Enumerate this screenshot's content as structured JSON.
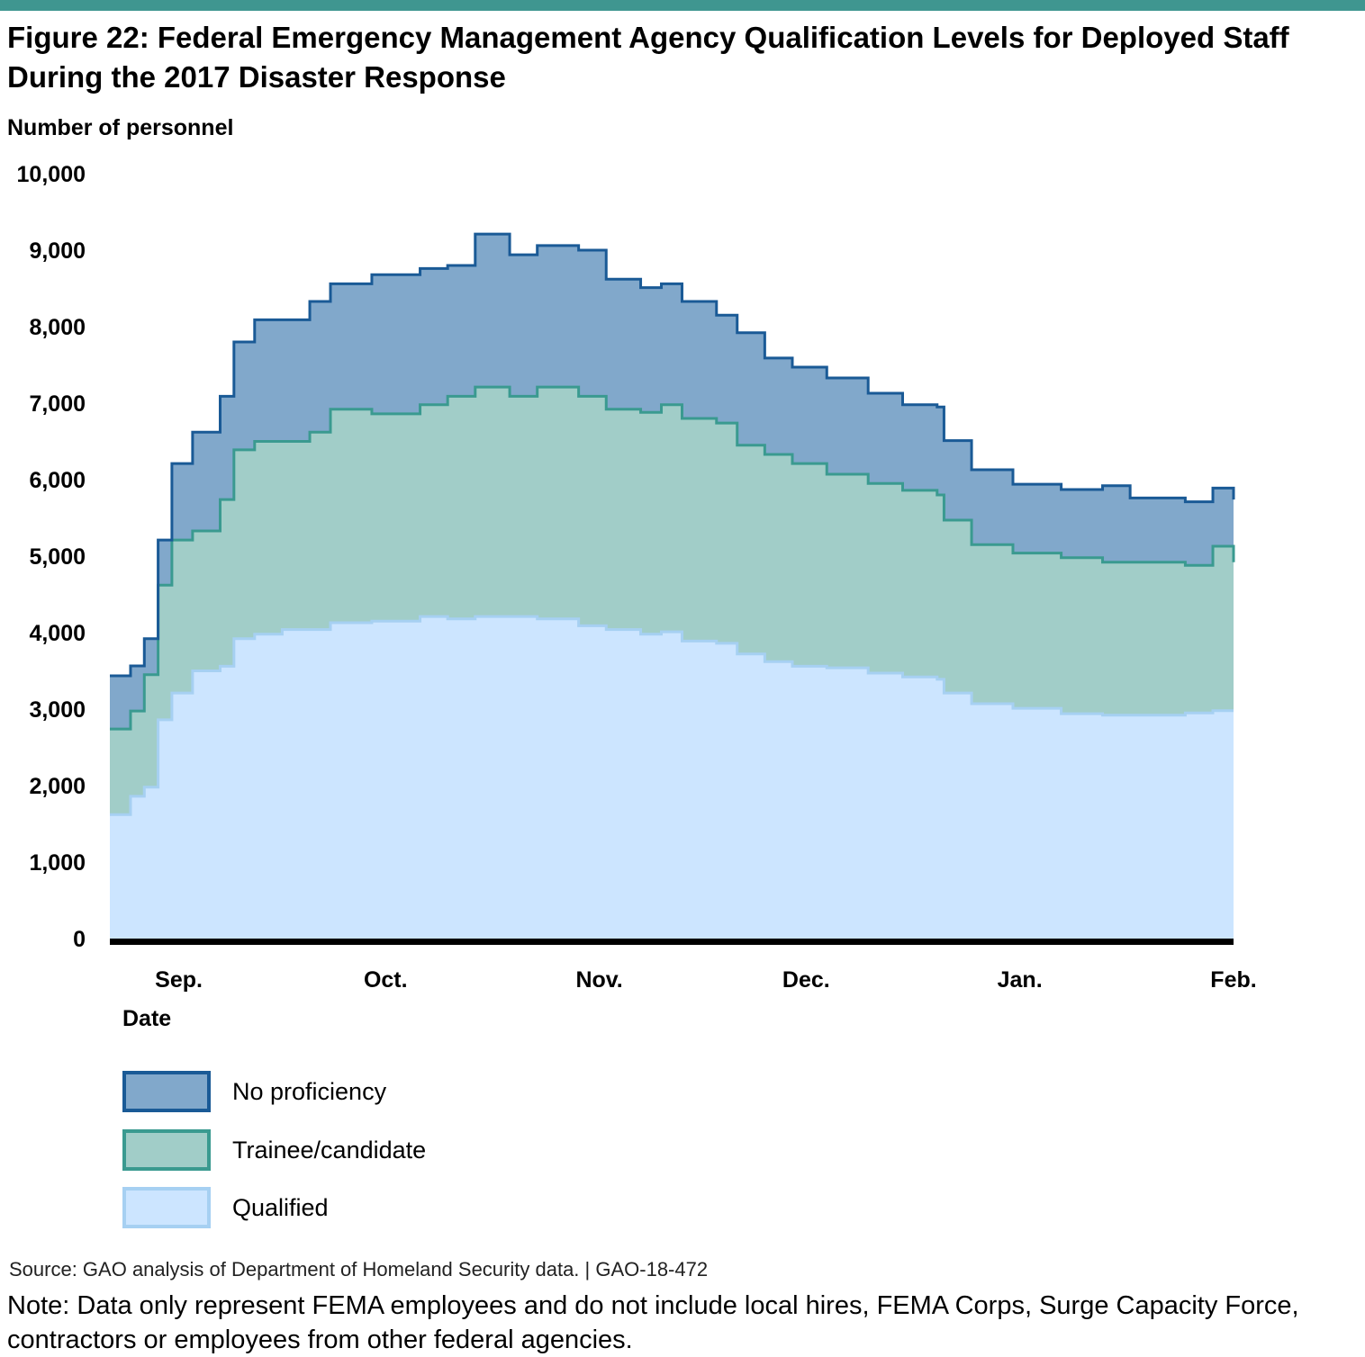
{
  "title": "Figure 22: Federal Emergency Management Agency Qualification Levels for Deployed Staff During the 2017 Disaster Response",
  "source": "Source: GAO analysis of Department of Homeland Security data.  |  GAO-18-472",
  "note": "Note: Data only represent FEMA employees and do not include local hires, FEMA Corps, Surge Capacity Force, contractors or employees from other federal agencies.",
  "chart_data": {
    "type": "area",
    "stacked": true,
    "step": true,
    "title": "Federal Emergency Management Agency Qualification Levels for Deployed Staff During the 2017 Disaster Response",
    "xlabel": "Date",
    "ylabel": "Number of personnel",
    "ylim": [
      0,
      10000
    ],
    "yticks": [
      "0",
      "1,000",
      "2,000",
      "3,000",
      "4,000",
      "5,000",
      "6,000",
      "7,000",
      "8,000",
      "9,000",
      "10,000"
    ],
    "ytick_values": [
      0,
      1000,
      2000,
      3000,
      4000,
      5000,
      6000,
      7000,
      8000,
      9000,
      10000
    ],
    "xlim": [
      "2017-08-22",
      "2018-02-01"
    ],
    "xticks": [
      {
        "label": "Sep.",
        "date": "2017-09-01"
      },
      {
        "label": "Oct.",
        "date": "2017-10-01"
      },
      {
        "label": "Nov.",
        "date": "2017-11-01"
      },
      {
        "label": "Dec.",
        "date": "2017-12-01"
      },
      {
        "label": "Jan.",
        "date": "2018-01-01"
      },
      {
        "label": "Feb.",
        "date": "2018-02-01"
      }
    ],
    "grid": false,
    "legend_position": "bottom-left",
    "x": [
      "2017-08-22",
      "2017-08-25",
      "2017-08-27",
      "2017-08-29",
      "2017-08-31",
      "2017-09-03",
      "2017-09-07",
      "2017-09-09",
      "2017-09-12",
      "2017-09-16",
      "2017-09-20",
      "2017-09-23",
      "2017-09-29",
      "2017-10-06",
      "2017-10-10",
      "2017-10-14",
      "2017-10-19",
      "2017-10-23",
      "2017-10-29",
      "2017-11-02",
      "2017-11-07",
      "2017-11-10",
      "2017-11-13",
      "2017-11-18",
      "2017-11-21",
      "2017-11-25",
      "2017-11-29",
      "2017-12-04",
      "2017-12-10",
      "2017-12-15",
      "2017-12-20",
      "2017-12-21",
      "2017-12-25",
      "2017-12-31",
      "2018-01-07",
      "2018-01-13",
      "2018-01-17",
      "2018-01-25",
      "2018-01-29",
      "2018-02-01"
    ],
    "series": [
      {
        "name": "Qualified",
        "fill": "#cce5ff",
        "stroke": "#a6d0f2",
        "values": [
          1620,
          1860,
          1980,
          2860,
          3210,
          3500,
          3560,
          3920,
          3980,
          4040,
          4040,
          4130,
          4150,
          4210,
          4180,
          4210,
          4210,
          4180,
          4090,
          4040,
          3980,
          4010,
          3890,
          3860,
          3720,
          3620,
          3560,
          3540,
          3470,
          3420,
          3390,
          3210,
          3070,
          3010,
          2940,
          2920,
          2920,
          2950,
          2980,
          2980
        ]
      },
      {
        "name": "Trainee/candidate",
        "fill": "#a1cdc8",
        "stroke": "#3a9a90",
        "values": [
          1120,
          1115,
          1470,
          1760,
          2000,
          1830,
          2180,
          2470,
          2520,
          2460,
          2580,
          2790,
          2710,
          2770,
          2910,
          3000,
          2880,
          3030,
          3000,
          2880,
          2900,
          2970,
          2910,
          2880,
          2730,
          2710,
          2650,
          2530,
          2480,
          2440,
          2410,
          2260,
          2080,
          2030,
          2040,
          2000,
          2000,
          1930,
          2150,
          1940
        ]
      },
      {
        "name": "No proficiency",
        "fill": "#81a8cb",
        "stroke": "#1a5a96",
        "values": [
          695,
          590,
          470,
          590,
          1000,
          1290,
          1350,
          1410,
          1590,
          1590,
          1710,
          1640,
          1820,
          1780,
          1710,
          2000,
          1850,
          1850,
          1910,
          1700,
          1630,
          1580,
          1530,
          1410,
          1470,
          1260,
          1260,
          1260,
          1180,
          1120,
          1150,
          1040,
          980,
          900,
          890,
          1000,
          840,
          830,
          760,
          820
        ]
      }
    ]
  }
}
